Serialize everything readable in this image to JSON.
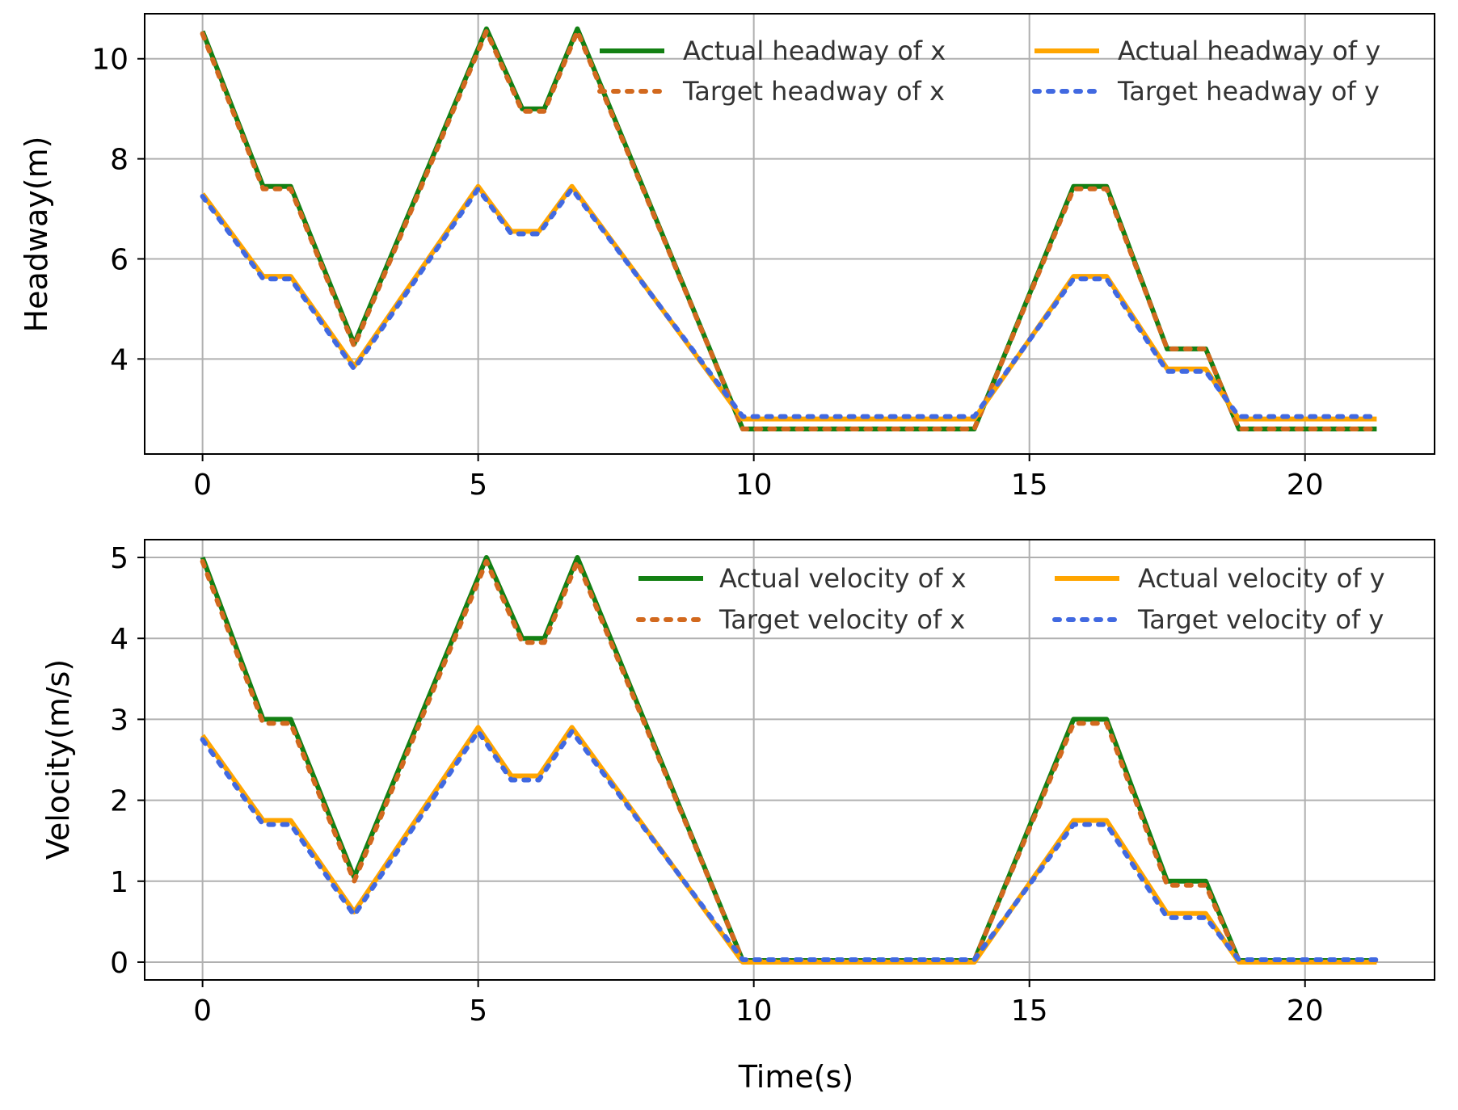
{
  "colors": {
    "actual_x": "#138013",
    "target_x": "#d2691e",
    "actual_y": "#ffa500",
    "target_y": "#4169e1",
    "grid": "#b0b0b0",
    "axis": "#000000"
  },
  "chart_data": [
    {
      "type": "line",
      "xlabel": "",
      "ylabel": "Headway(m)",
      "xlim": [
        -1.05,
        22.35
      ],
      "ylim": [
        2.1,
        10.9
      ],
      "xticks": [
        0,
        5,
        10,
        15,
        20
      ],
      "yticks": [
        4,
        6,
        8,
        10
      ],
      "xtick_labels": [
        "0",
        "5",
        "10",
        "15",
        "20"
      ],
      "ytick_labels": [
        "4",
        "6",
        "8",
        "10"
      ],
      "grid": true,
      "legend_position": "top-right",
      "series": [
        {
          "name": "Actual headway of x",
          "style": "solid",
          "color_key": "actual_x",
          "x": [
            0,
            1.1,
            1.6,
            2.75,
            5.15,
            5.8,
            6.2,
            6.8,
            9.8,
            14.0,
            15.8,
            16.4,
            17.5,
            18.2,
            18.8,
            21.3
          ],
          "y": [
            10.55,
            7.45,
            7.45,
            4.3,
            10.6,
            9.0,
            9.0,
            10.6,
            2.6,
            2.6,
            7.45,
            7.45,
            4.2,
            4.2,
            2.6,
            2.6
          ]
        },
        {
          "name": "Target headway of x",
          "style": "dotted",
          "color_key": "target_x",
          "x": [
            0,
            1.1,
            1.6,
            2.75,
            5.15,
            5.8,
            6.2,
            6.8,
            9.8,
            14.0,
            15.8,
            16.4,
            17.5,
            18.2,
            18.8,
            21.3
          ],
          "y": [
            10.5,
            7.4,
            7.4,
            4.25,
            10.55,
            8.95,
            8.95,
            10.55,
            2.6,
            2.6,
            7.4,
            7.4,
            4.2,
            4.2,
            2.6,
            2.6
          ]
        },
        {
          "name": "Actual headway of y",
          "style": "solid",
          "color_key": "actual_y",
          "x": [
            0,
            1.1,
            1.6,
            2.75,
            5.0,
            5.6,
            6.1,
            6.7,
            9.8,
            14.0,
            15.8,
            16.4,
            17.5,
            18.2,
            18.8,
            21.3
          ],
          "y": [
            7.3,
            5.65,
            5.65,
            3.85,
            7.45,
            6.55,
            6.55,
            7.45,
            2.8,
            2.8,
            5.65,
            5.65,
            3.8,
            3.8,
            2.8,
            2.8
          ]
        },
        {
          "name": "Target headway of y",
          "style": "dotted",
          "color_key": "target_y",
          "x": [
            0,
            1.1,
            1.6,
            2.75,
            5.0,
            5.6,
            6.1,
            6.7,
            9.8,
            14.0,
            15.8,
            16.4,
            17.5,
            18.2,
            18.8,
            21.3
          ],
          "y": [
            7.25,
            5.6,
            5.6,
            3.8,
            7.4,
            6.5,
            6.5,
            7.4,
            2.85,
            2.85,
            5.6,
            5.6,
            3.75,
            3.75,
            2.85,
            2.85
          ]
        }
      ]
    },
    {
      "type": "line",
      "xlabel": "Time(s)",
      "ylabel": "Velocity(m/s)",
      "xlim": [
        -1.05,
        22.35
      ],
      "ylim": [
        -0.22,
        5.22
      ],
      "xticks": [
        0,
        5,
        10,
        15,
        20
      ],
      "yticks": [
        0,
        1,
        2,
        3,
        4,
        5
      ],
      "xtick_labels": [
        "0",
        "5",
        "10",
        "15",
        "20"
      ],
      "ytick_labels": [
        "0",
        "1",
        "2",
        "3",
        "4",
        "5"
      ],
      "grid": true,
      "legend_position": "top-right",
      "series": [
        {
          "name": "Actual velocity of x",
          "style": "solid",
          "color_key": "actual_x",
          "x": [
            0,
            1.1,
            1.6,
            2.75,
            5.15,
            5.8,
            6.2,
            6.8,
            9.8,
            14.0,
            15.8,
            16.4,
            17.5,
            18.2,
            18.8,
            21.3
          ],
          "y": [
            5.0,
            3.0,
            3.0,
            1.05,
            5.0,
            4.0,
            4.0,
            5.0,
            0.02,
            0.02,
            3.0,
            3.0,
            1.0,
            1.0,
            0.02,
            0.02
          ]
        },
        {
          "name": "Target velocity of x",
          "style": "dotted",
          "color_key": "target_x",
          "x": [
            0,
            1.1,
            1.6,
            2.75,
            5.15,
            5.8,
            6.2,
            6.8,
            9.8,
            14.0,
            15.8,
            16.4,
            17.5,
            18.2,
            18.8,
            21.3
          ],
          "y": [
            4.95,
            2.95,
            2.95,
            1.0,
            4.95,
            3.95,
            3.95,
            4.95,
            0.02,
            0.02,
            2.95,
            2.95,
            0.95,
            0.95,
            0.02,
            0.02
          ]
        },
        {
          "name": "Actual velocity of y",
          "style": "solid",
          "color_key": "actual_y",
          "x": [
            0,
            1.1,
            1.6,
            2.75,
            5.0,
            5.6,
            6.1,
            6.7,
            9.8,
            14.0,
            15.8,
            16.4,
            17.5,
            18.2,
            18.8,
            21.3
          ],
          "y": [
            2.8,
            1.75,
            1.75,
            0.62,
            2.9,
            2.3,
            2.3,
            2.9,
            0.0,
            0.0,
            1.75,
            1.75,
            0.6,
            0.6,
            0.0,
            0.0
          ]
        },
        {
          "name": "Target velocity of y",
          "style": "dotted",
          "color_key": "target_y",
          "x": [
            0,
            1.1,
            1.6,
            2.75,
            5.0,
            5.6,
            6.1,
            6.7,
            9.8,
            14.0,
            15.8,
            16.4,
            17.5,
            18.2,
            18.8,
            21.3
          ],
          "y": [
            2.75,
            1.7,
            1.7,
            0.58,
            2.85,
            2.25,
            2.25,
            2.85,
            0.03,
            0.03,
            1.7,
            1.7,
            0.55,
            0.55,
            0.03,
            0.03
          ]
        }
      ]
    }
  ]
}
